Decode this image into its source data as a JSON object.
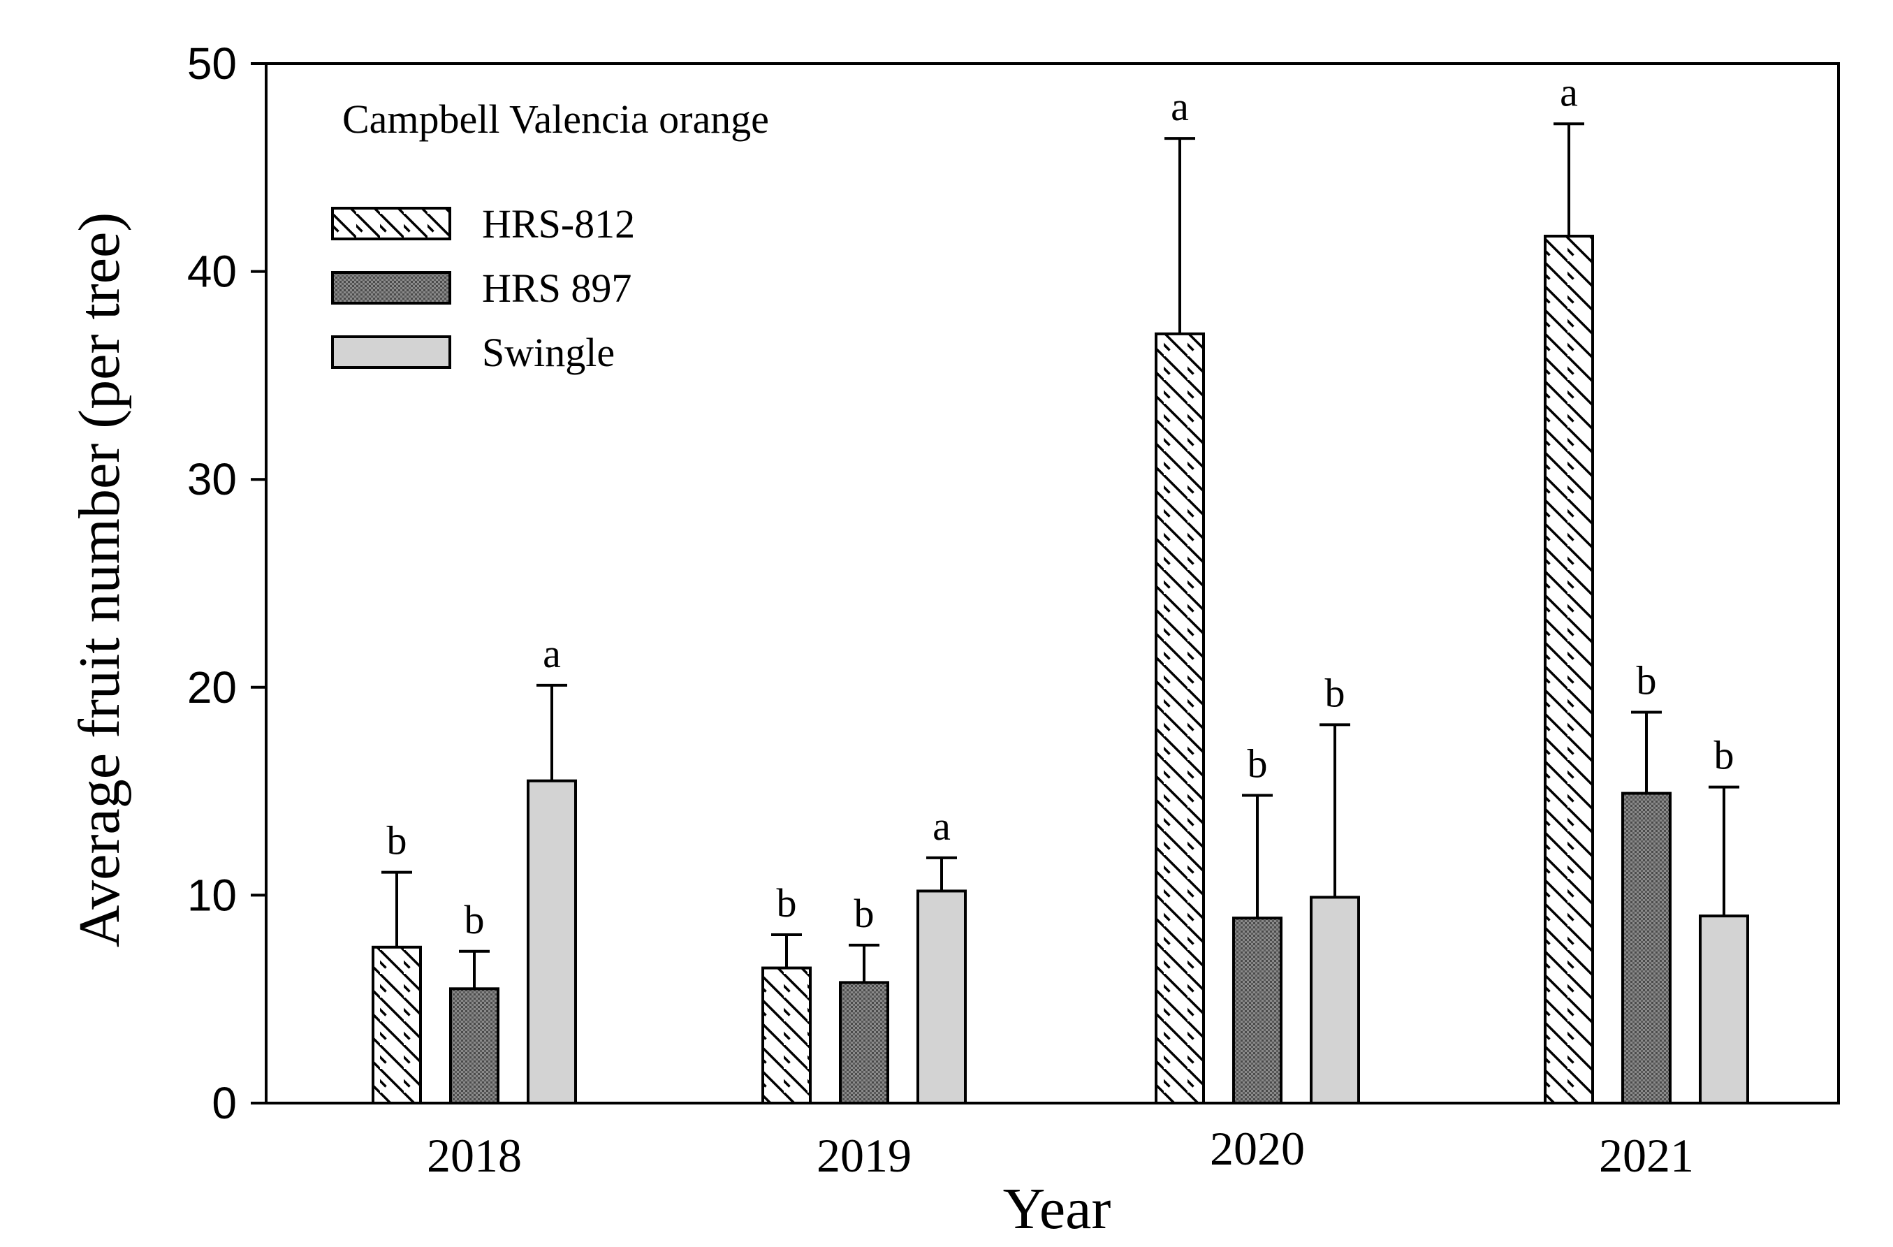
{
  "chart_data": {
    "type": "bar",
    "title": "",
    "annotation": "Campbell Valencia orange",
    "xlabel": "Year",
    "ylabel": "Average fruit number (per tree)",
    "ylim": [
      0,
      50
    ],
    "yticks": [
      "0",
      "10",
      "20",
      "30",
      "40",
      "50"
    ],
    "categories": [
      "2018",
      "2019",
      "2020",
      "2021"
    ],
    "legend_position": "top-left",
    "grid": false,
    "series": [
      {
        "name": "HRS-812",
        "pattern": "hatch",
        "fill": "#ffffff",
        "values": [
          7.5,
          6.5,
          37.0,
          41.7
        ],
        "errors": [
          3.6,
          1.6,
          9.4,
          5.4
        ],
        "letters": [
          "b",
          "b",
          "a",
          "a"
        ]
      },
      {
        "name": "HRS 897",
        "pattern": "dots",
        "fill": "#7a7a7a",
        "values": [
          5.5,
          5.8,
          8.9,
          14.9
        ],
        "errors": [
          1.8,
          1.8,
          5.9,
          3.9
        ],
        "letters": [
          "b",
          "b",
          "b",
          "b"
        ]
      },
      {
        "name": "Swingle",
        "pattern": "solid",
        "fill": "#d3d3d3",
        "values": [
          15.5,
          10.2,
          9.9,
          9.0
        ],
        "errors": [
          4.6,
          1.6,
          8.3,
          6.2
        ],
        "letters": [
          "a",
          "a",
          "b",
          "b"
        ]
      }
    ]
  }
}
